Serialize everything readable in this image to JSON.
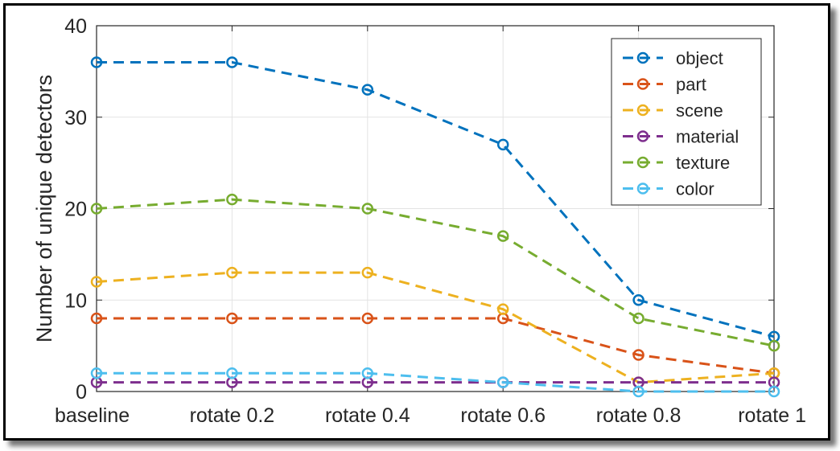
{
  "chart_data": {
    "type": "line",
    "title": "",
    "xlabel": "",
    "ylabel": "Number of unique detectors",
    "categories": [
      "baseline",
      "rotate 0.2",
      "rotate 0.4",
      "rotate 0.6",
      "rotate 0.8",
      "rotate 1"
    ],
    "ylim": [
      0,
      40
    ],
    "yticks": [
      0,
      10,
      20,
      30,
      40
    ],
    "grid": true,
    "legend_position": "top-right",
    "line_style": "dashed",
    "marker": "open-circle",
    "series": [
      {
        "name": "object",
        "color": "#0072BD",
        "values": [
          36,
          36,
          33,
          27,
          10,
          6
        ]
      },
      {
        "name": "part",
        "color": "#D95319",
        "values": [
          8,
          8,
          8,
          8,
          4,
          2
        ]
      },
      {
        "name": "scene",
        "color": "#EDB120",
        "values": [
          12,
          13,
          13,
          9,
          1,
          2
        ]
      },
      {
        "name": "material",
        "color": "#7E2F8E",
        "values": [
          1,
          1,
          1,
          1,
          1,
          1
        ]
      },
      {
        "name": "texture",
        "color": "#77AC30",
        "values": [
          20,
          21,
          20,
          17,
          8,
          5
        ]
      },
      {
        "name": "color",
        "color": "#4DBEEE",
        "values": [
          2,
          2,
          2,
          1,
          0,
          0
        ]
      }
    ]
  }
}
